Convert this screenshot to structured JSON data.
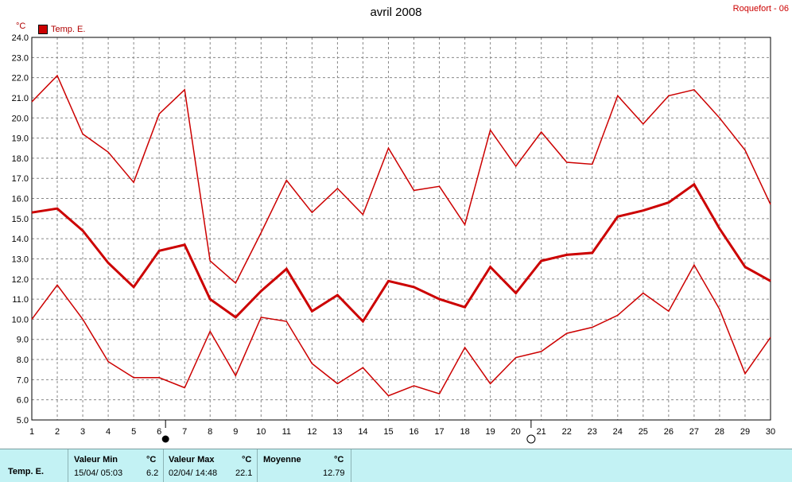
{
  "chart_data": {
    "type": "line",
    "title": "avril 2008",
    "location": "Roquefort - 06",
    "ylabel": "°C",
    "ylim": [
      5.0,
      24.0
    ],
    "y_ticks": [
      "24.0",
      "23.0",
      "22.0",
      "21.0",
      "20.0",
      "19.0",
      "18.0",
      "17.0",
      "16.0",
      "15.0",
      "14.0",
      "13.0",
      "12.0",
      "11.0",
      "10.0",
      "9.0",
      "8.0",
      "7.0",
      "6.0",
      "5.0"
    ],
    "x": [
      1,
      2,
      3,
      4,
      5,
      6,
      7,
      8,
      9,
      10,
      11,
      12,
      13,
      14,
      15,
      16,
      17,
      18,
      19,
      20,
      21,
      22,
      23,
      24,
      25,
      26,
      27,
      28,
      29,
      30
    ],
    "legend": "Temp. E.",
    "grid": true,
    "series": [
      {
        "values": [
          20.8,
          22.1,
          19.2,
          18.3,
          16.8,
          20.2,
          21.4,
          12.9,
          11.8,
          14.3,
          16.9,
          15.3,
          16.5,
          15.2,
          18.5,
          16.4,
          16.6,
          14.7,
          19.4,
          17.6,
          19.3,
          17.8,
          17.7,
          21.1,
          19.7,
          21.1,
          21.4,
          20.0,
          18.4,
          15.7
        ],
        "color": "#cc0000",
        "width": 1.5
      },
      {
        "values": [
          15.3,
          15.5,
          14.4,
          12.8,
          11.6,
          13.4,
          13.7,
          11.0,
          10.1,
          11.4,
          12.5,
          10.4,
          11.2,
          9.9,
          11.9,
          11.6,
          11.0,
          10.6,
          12.6,
          11.3,
          12.9,
          13.2,
          13.3,
          15.1,
          15.4,
          15.8,
          16.7,
          14.5,
          12.6,
          11.9
        ],
        "color": "#cc0000",
        "width": 3
      },
      {
        "values": [
          10.0,
          11.7,
          10.0,
          7.9,
          7.1,
          7.1,
          6.6,
          9.4,
          7.2,
          10.1,
          9.9,
          7.8,
          6.8,
          7.6,
          6.2,
          6.7,
          6.3,
          8.6,
          6.8,
          8.1,
          8.4,
          9.3,
          9.6,
          10.2,
          11.3,
          10.4,
          12.7,
          10.5,
          7.3,
          9.1
        ],
        "color": "#cc0000",
        "width": 1.5
      }
    ],
    "moon_phases": [
      {
        "day": 6.25,
        "phase": "full"
      },
      {
        "day": 20.6,
        "phase": "new"
      }
    ]
  },
  "footer": {
    "series_label": "Temp. E.",
    "min": {
      "label": "Valeur Min",
      "unit": "°C",
      "date": "15/04/  05:03",
      "value": "6.2"
    },
    "max": {
      "label": "Valeur Max",
      "unit": "°C",
      "date": "02/04/  14:48",
      "value": "22.1"
    },
    "mean": {
      "label": "Moyenne",
      "unit": "°C",
      "value": "12.79"
    }
  }
}
